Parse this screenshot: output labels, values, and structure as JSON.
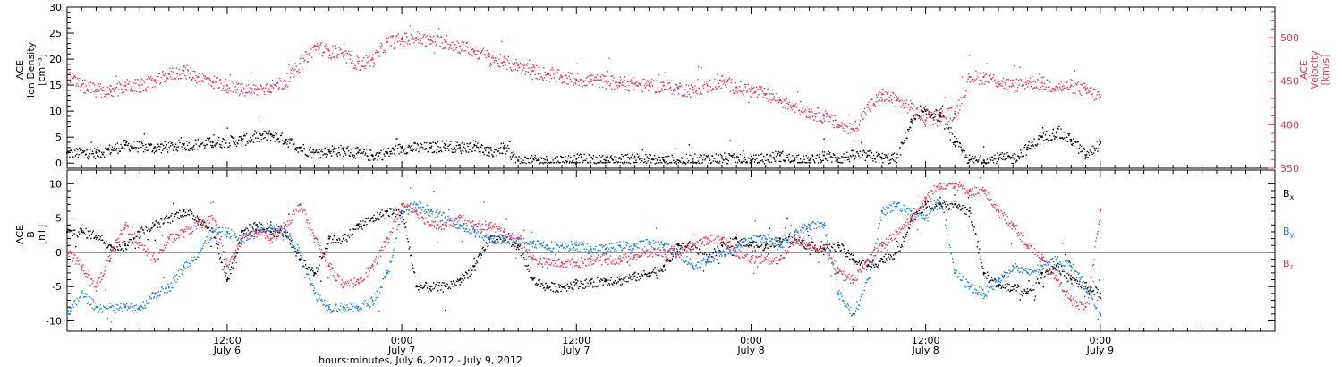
{
  "colors": {
    "black": "#000000",
    "red": "#e8325a",
    "blue": "#1a7fe0"
  },
  "xaxis": {
    "label": "hours:minutes, July  6, 2012 - July  9, 2012",
    "ticks": [
      {
        "t": 12,
        "time": "12:00",
        "date": "July 6"
      },
      {
        "t": 24,
        "time": "0:00",
        "date": "July 7"
      },
      {
        "t": 36,
        "time": "12:00",
        "date": "July 7"
      },
      {
        "t": 48,
        "time": "0:00",
        "date": "July 8"
      },
      {
        "t": 60,
        "time": "12:00",
        "date": "July 8"
      },
      {
        "t": 72,
        "time": "0:00",
        "date": "July 9"
      }
    ]
  },
  "chart_data": [
    {
      "type": "scatter",
      "panel": "top",
      "xlim": [
        1,
        84
      ],
      "ylabel": [
        "ACE",
        "Ion Density",
        "[cm⁻³]"
      ],
      "ylim": [
        -1,
        30
      ],
      "yticks": [
        0,
        5,
        10,
        15,
        20,
        25,
        30
      ],
      "y2label": [
        "ACE",
        "Velocity",
        "[km/s]"
      ],
      "y2lim": [
        350,
        535
      ],
      "y2ticks": [
        350,
        400,
        450,
        500
      ],
      "series": [
        {
          "name": "",
          "axis": "left",
          "color": "black",
          "x": [
            1,
            3,
            5,
            7,
            9,
            11,
            13,
            15,
            16,
            17,
            18,
            19,
            20,
            21,
            22,
            23,
            24,
            26,
            27,
            28,
            29,
            30,
            31,
            32,
            34,
            36,
            38,
            40,
            42,
            44,
            46,
            48,
            50,
            51,
            52,
            53,
            54,
            55,
            56,
            57,
            58,
            59,
            60,
            61,
            62,
            63,
            64,
            65,
            66,
            67,
            68,
            69,
            70,
            71,
            72
          ],
          "y": [
            2,
            2,
            3.5,
            3,
            3.5,
            4,
            4.5,
            5.5,
            4.5,
            3,
            2,
            2.5,
            2.5,
            2,
            1.5,
            2,
            3,
            3,
            3.5,
            3,
            3.5,
            2,
            3,
            0.5,
            0.5,
            0.8,
            0.5,
            1,
            0.5,
            0.8,
            1,
            0.5,
            1.5,
            0.5,
            0.5,
            1.5,
            1,
            1.5,
            1.5,
            1,
            1,
            8,
            10,
            9,
            4,
            0.5,
            0.5,
            1,
            1,
            3,
            5,
            6,
            4.5,
            1.5,
            4
          ]
        },
        {
          "name": "",
          "axis": "right",
          "color": "red",
          "x": [
            1,
            2,
            3,
            4,
            5,
            6,
            7,
            8,
            9,
            10,
            11,
            12,
            13,
            14,
            15,
            16,
            17,
            18,
            19,
            20,
            21,
            22,
            23,
            24,
            25,
            26,
            27,
            28,
            29,
            30,
            31,
            32,
            33,
            34,
            35,
            36,
            37,
            38,
            39,
            40,
            41,
            42,
            43,
            44,
            45,
            46,
            47,
            48,
            49,
            50,
            51,
            52,
            53,
            54,
            55,
            56,
            57,
            58,
            59,
            60,
            61,
            62,
            63,
            64,
            65,
            66,
            67,
            68,
            69,
            70,
            71,
            72
          ],
          "y": [
            455,
            445,
            440,
            438,
            445,
            445,
            450,
            458,
            462,
            455,
            450,
            445,
            440,
            440,
            445,
            450,
            470,
            490,
            485,
            480,
            470,
            475,
            495,
            498,
            500,
            497,
            495,
            490,
            485,
            478,
            472,
            468,
            462,
            458,
            455,
            452,
            452,
            450,
            448,
            447,
            445,
            445,
            442,
            440,
            445,
            450,
            443,
            440,
            435,
            428,
            422,
            415,
            410,
            400,
            395,
            420,
            435,
            428,
            420,
            405,
            412,
            413,
            455,
            455,
            450,
            445,
            450,
            448,
            444,
            445,
            440,
            432
          ]
        }
      ]
    },
    {
      "type": "scatter",
      "panel": "bottom",
      "xlim": [
        1,
        84
      ],
      "ylabel": [
        "ACE",
        "B",
        "[nT]"
      ],
      "ylim": [
        -11.5,
        12
      ],
      "yticks": [
        -10,
        -5,
        0,
        5,
        10
      ],
      "series": [
        {
          "name": "Bx",
          "color": "black",
          "x": [
            1,
            2,
            3,
            4,
            5,
            6,
            7,
            8,
            9,
            10,
            11,
            12,
            13,
            14,
            15,
            16,
            17,
            18,
            19,
            20,
            21,
            22,
            23,
            24,
            25,
            26,
            27,
            28,
            29,
            30,
            31,
            32,
            33,
            34,
            35,
            36,
            37,
            38,
            39,
            40,
            41,
            42,
            43,
            44,
            45,
            46,
            47,
            48,
            49,
            50,
            51,
            52,
            53,
            54,
            55,
            56,
            57,
            58,
            59,
            60,
            61,
            62,
            63,
            64,
            65,
            66,
            67,
            68,
            69,
            70,
            71,
            72
          ],
          "y": [
            3,
            3,
            2.5,
            1,
            1,
            3,
            4,
            5,
            6,
            5,
            3,
            -4,
            3,
            4,
            3,
            3,
            -1,
            -3,
            2,
            2,
            4,
            5,
            6,
            6,
            -5,
            -5,
            -5,
            -4,
            -2,
            2,
            2,
            1,
            -4,
            -5,
            -5,
            -4.5,
            -4.5,
            -4,
            -4,
            -3.5,
            -3,
            -2,
            1,
            1,
            -1,
            1,
            2,
            1,
            1,
            2,
            2,
            1,
            0.5,
            1,
            -1,
            -2,
            -1,
            0,
            5,
            7,
            7,
            7,
            6,
            -3,
            -5,
            -5,
            -6,
            -3,
            -2,
            -4,
            -5,
            -6
          ]
        },
        {
          "name": "By",
          "color": "blue",
          "x": [
            1,
            2,
            3,
            4,
            5,
            6,
            7,
            8,
            9,
            10,
            11,
            12,
            13,
            14,
            15,
            16,
            17,
            18,
            19,
            20,
            21,
            22,
            23,
            24,
            25,
            26,
            27,
            28,
            29,
            30,
            31,
            32,
            33,
            34,
            35,
            36,
            37,
            38,
            39,
            40,
            41,
            42,
            43,
            44,
            45,
            46,
            47,
            48,
            49,
            50,
            51,
            52,
            53,
            54,
            55,
            56,
            57,
            58,
            59,
            60,
            61,
            62,
            63,
            64,
            65,
            66,
            67,
            68,
            69,
            70,
            71,
            72
          ],
          "y": [
            -9,
            -6,
            -8,
            -8,
            -8,
            -8,
            -6,
            -5,
            -2,
            0,
            3,
            3,
            2,
            3,
            4,
            3,
            0,
            -6,
            -8,
            -8,
            -8,
            -7,
            -3,
            6,
            7,
            6,
            5,
            4,
            3,
            2,
            2,
            2,
            1.5,
            1,
            1,
            1,
            0.5,
            0.5,
            1,
            1,
            1.5,
            1,
            0,
            -2,
            -1,
            0,
            1,
            2,
            2,
            1,
            3,
            4,
            4,
            -6,
            -9,
            -4,
            6,
            7,
            6,
            5,
            8,
            -3,
            -5,
            -6,
            -4,
            -2,
            -3,
            -2,
            -1,
            -2,
            -5,
            -9
          ]
        },
        {
          "name": "Bz",
          "color": "red",
          "x": [
            1,
            2,
            3,
            4,
            5,
            6,
            7,
            8,
            9,
            10,
            11,
            12,
            13,
            14,
            15,
            16,
            17,
            18,
            19,
            20,
            21,
            22,
            23,
            24,
            25,
            26,
            27,
            28,
            29,
            30,
            31,
            32,
            33,
            34,
            35,
            36,
            37,
            38,
            39,
            40,
            41,
            42,
            43,
            44,
            45,
            46,
            47,
            48,
            49,
            50,
            51,
            52,
            53,
            54,
            55,
            56,
            57,
            58,
            59,
            60,
            61,
            62,
            63,
            64,
            65,
            66,
            67,
            68,
            69,
            70,
            71,
            72
          ],
          "y": [
            0,
            -2,
            -5,
            0,
            4,
            1,
            -1,
            2,
            3,
            4,
            5,
            -2,
            2,
            3,
            2,
            4,
            7,
            2,
            -2,
            -5,
            -4,
            -2,
            2,
            7,
            6,
            4,
            4,
            5,
            4,
            4,
            3,
            2,
            -1,
            -1.5,
            -1.5,
            -1.5,
            -1,
            -1,
            -1,
            -0.5,
            0,
            0,
            0,
            1,
            2,
            2,
            0,
            -1,
            -1,
            -1,
            2,
            1,
            1,
            -3,
            -4,
            -1,
            1,
            3,
            5,
            8,
            10,
            10,
            9,
            9,
            6,
            4,
            1,
            -1,
            -4,
            -7,
            -8,
            6
          ]
        }
      ]
    }
  ]
}
